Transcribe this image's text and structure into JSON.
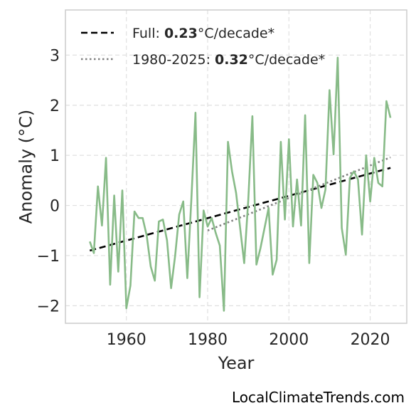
{
  "chart_data": {
    "type": "line",
    "xlabel": "Year",
    "ylabel": "Anomaly (°C)",
    "xlim": [
      1945,
      2029
    ],
    "ylim": [
      -2.35,
      3.9
    ],
    "xticks": [
      1960,
      1980,
      2000,
      2020
    ],
    "yticks": [
      -2,
      -1,
      0,
      1,
      2,
      3
    ],
    "ytick_labels": [
      "−2",
      "−1",
      "0",
      "1",
      "2",
      "3"
    ],
    "grid": true,
    "legend_position": "top-left",
    "series": [
      {
        "kind": "observed",
        "color": "#88bb88",
        "x": [
          1951,
          1952,
          1953,
          1954,
          1955,
          1956,
          1957,
          1958,
          1959,
          1960,
          1961,
          1962,
          1963,
          1964,
          1965,
          1966,
          1967,
          1968,
          1969,
          1970,
          1971,
          1972,
          1973,
          1974,
          1975,
          1976,
          1977,
          1978,
          1979,
          1980,
          1981,
          1982,
          1983,
          1984,
          1985,
          1986,
          1987,
          1988,
          1989,
          1990,
          1991,
          1992,
          1993,
          1994,
          1995,
          1996,
          1997,
          1998,
          1999,
          2000,
          2001,
          2002,
          2003,
          2004,
          2005,
          2006,
          2007,
          2008,
          2009,
          2010,
          2011,
          2012,
          2013,
          2014,
          2015,
          2016,
          2017,
          2018,
          2019,
          2020,
          2021,
          2022,
          2023,
          2024,
          2025
        ],
        "values": [
          -0.72,
          -0.95,
          0.38,
          -0.4,
          0.95,
          -1.58,
          0.2,
          -1.32,
          0.3,
          -2.05,
          -1.6,
          -0.12,
          -0.25,
          -0.25,
          -0.6,
          -1.22,
          -1.5,
          -0.32,
          -0.28,
          -0.7,
          -1.65,
          -1.0,
          -0.18,
          0.08,
          -1.45,
          0.12,
          1.85,
          -1.83,
          -0.1,
          -0.42,
          -0.25,
          -0.55,
          -0.8,
          -2.1,
          1.27,
          0.68,
          0.25,
          -0.45,
          -1.15,
          0.1,
          1.78,
          -1.18,
          -0.85,
          -0.45,
          -0.05,
          -1.38,
          -1.08,
          1.27,
          -0.28,
          1.32,
          -0.42,
          0.52,
          -0.4,
          1.8,
          -1.15,
          0.61,
          0.45,
          -0.05,
          0.32,
          2.3,
          1.02,
          2.95,
          -0.45,
          -0.98,
          0.55,
          0.68,
          0.52,
          -0.58,
          1.0,
          0.08,
          0.95,
          0.45,
          0.38,
          2.08,
          1.75
        ]
      }
    ],
    "trends": [
      {
        "kind": "full",
        "style": "dashed",
        "color": "#000000",
        "x": [
          1951,
          2025
        ],
        "y": [
          -0.9,
          0.75
        ]
      },
      {
        "kind": "1980-2025",
        "style": "dotted",
        "color": "#808080",
        "x": [
          1980,
          2025
        ],
        "y": [
          -0.5,
          0.96
        ]
      }
    ],
    "legend": [
      {
        "prefix": "Full: ",
        "value": "0.23",
        "suffix": "°C/decade*"
      },
      {
        "prefix": "1980-2025: ",
        "value": "0.32",
        "suffix": "°C/decade*"
      }
    ]
  },
  "watermark": "LocalClimateTrends.com"
}
